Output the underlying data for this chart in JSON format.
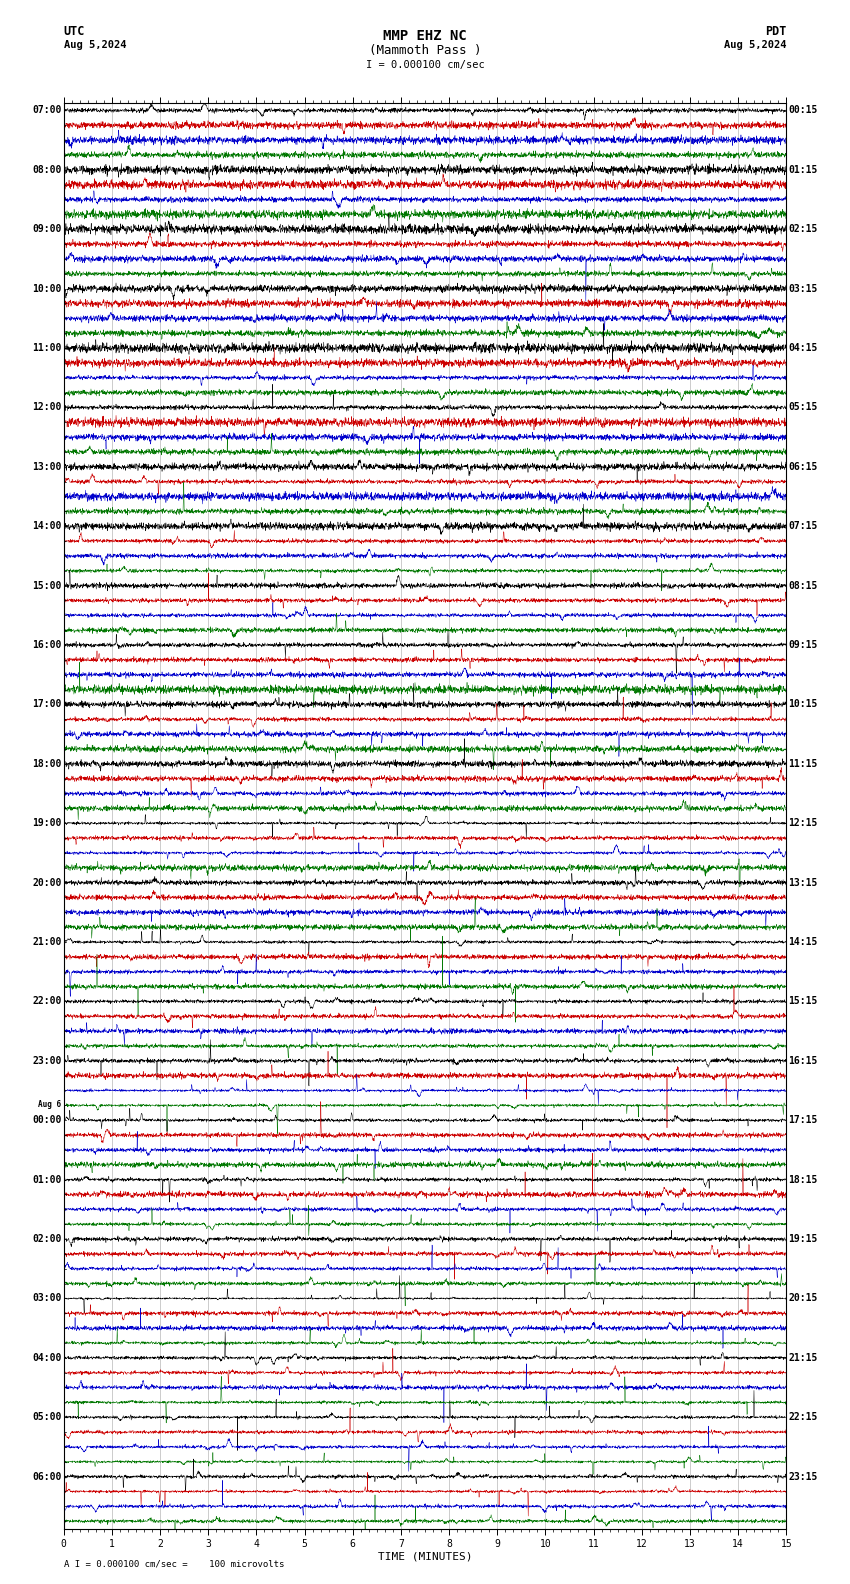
{
  "title_line1": "MMP EHZ NC",
  "title_line2": "(Mammoth Pass )",
  "scale_text": "I = 0.000100 cm/sec",
  "utc_label": "UTC",
  "utc_date": "Aug 5,2024",
  "pdt_label": "PDT",
  "pdt_date": "Aug 5,2024",
  "xlabel": "TIME (MINUTES)",
  "footer_text": "A I = 0.000100 cm/sec =    100 microvolts",
  "bg_color": "#ffffff",
  "trace_colors": [
    "#000000",
    "#cc0000",
    "#0000cc",
    "#007700"
  ],
  "n_minutes": 15,
  "samples_per_minute": 200,
  "utc_start_labels": [
    "07:00",
    "08:00",
    "09:00",
    "10:00",
    "11:00",
    "12:00",
    "13:00",
    "14:00",
    "15:00",
    "16:00",
    "17:00",
    "18:00",
    "19:00",
    "20:00",
    "21:00",
    "22:00",
    "23:00",
    "Aug 6\n00:00",
    "01:00",
    "02:00",
    "03:00",
    "04:00",
    "05:00",
    "06:00"
  ],
  "pdt_labels": [
    "00:15",
    "01:15",
    "02:15",
    "03:15",
    "04:15",
    "05:15",
    "06:15",
    "07:15",
    "08:15",
    "09:15",
    "10:15",
    "11:15",
    "12:15",
    "13:15",
    "14:15",
    "15:15",
    "16:15",
    "17:15",
    "18:15",
    "19:15",
    "20:15",
    "21:15",
    "22:15",
    "23:15"
  ],
  "n_label_rows": 24,
  "grid_color": "#888888",
  "title_fontsize": 10,
  "label_fontsize": 7,
  "axis_fontsize": 8,
  "noise_base": 0.06,
  "noise_scale_per_row": 0.018,
  "spike_base_prob": 0.0003,
  "spike_scale_per_row": 0.00015
}
